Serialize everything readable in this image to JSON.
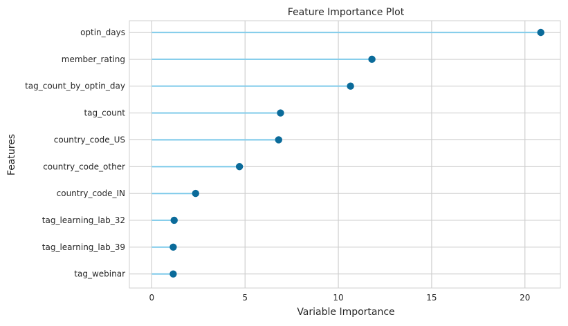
{
  "chart_data": {
    "type": "lollipop",
    "title": "Feature Importance Plot",
    "xlabel": "Variable Importance",
    "ylabel": "Features",
    "xlim": [
      -1.2,
      21.9
    ],
    "xticks": [
      0,
      5,
      10,
      15,
      20
    ],
    "grid": true,
    "categories": [
      "optin_days",
      "member_rating",
      "tag_count_by_optin_day",
      "tag_count",
      "country_code_US",
      "country_code_other",
      "country_code_IN",
      "tag_learning_lab_32",
      "tag_learning_lab_39",
      "tag_webinar"
    ],
    "values": [
      20.85,
      11.8,
      10.65,
      6.9,
      6.8,
      4.7,
      2.35,
      1.2,
      1.15,
      1.15
    ],
    "colors": {
      "line": "#87ceeb",
      "marker": "#0b6b9a",
      "grid": "#cfcfcf",
      "frame": "#cfcfcf"
    }
  }
}
